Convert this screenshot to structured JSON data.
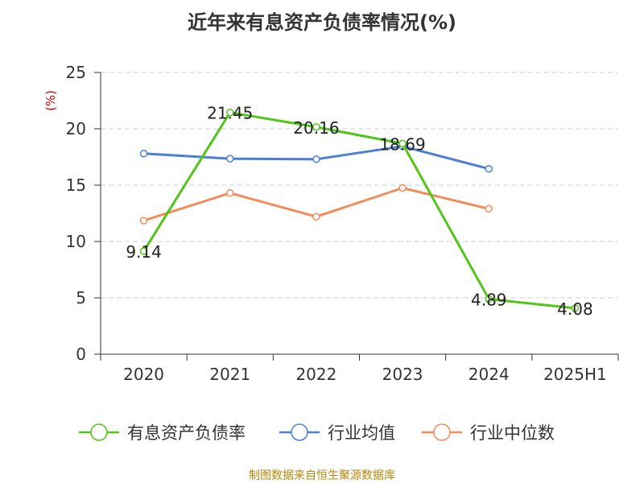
{
  "chart_data": {
    "type": "line",
    "title": "近年来有息资产负债率情况(%)",
    "ylabel": "(%)",
    "xlabel": "",
    "categories": [
      "2020",
      "2021",
      "2022",
      "2023",
      "2024",
      "2025H1"
    ],
    "ylim": [
      0,
      25
    ],
    "yticks": [
      0,
      5,
      10,
      15,
      20,
      25
    ],
    "grid": true,
    "legend_position": "bottom",
    "series": [
      {
        "name": "有息资产负债率",
        "color": "#52c41a",
        "values": [
          9.14,
          21.45,
          20.16,
          18.69,
          4.89,
          4.08
        ],
        "labels": [
          "9.14",
          "21.45",
          "20.16",
          "18.69",
          "4.89",
          "4.08"
        ]
      },
      {
        "name": "行业均值",
        "color": "#4a7fd6",
        "values": [
          17.8,
          17.35,
          17.3,
          18.45,
          16.45,
          null
        ]
      },
      {
        "name": "行业中位数",
        "color": "#f28c5a",
        "values": [
          11.85,
          14.3,
          12.2,
          14.75,
          12.9,
          null
        ]
      }
    ]
  },
  "source": "制图数据来自恒生聚源数据库"
}
